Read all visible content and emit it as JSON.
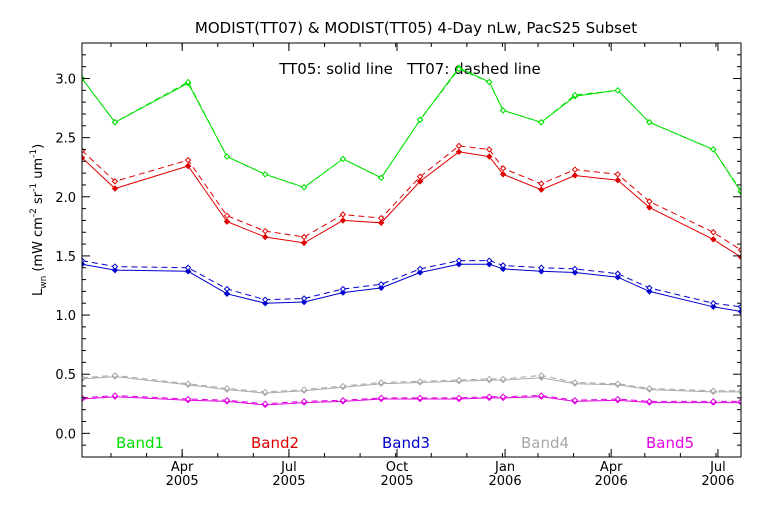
{
  "chart_data": {
    "type": "line",
    "title": "MODIST(TT07) & MODIST(TT05) 4-Day nLw, PacS25 Subset",
    "annotation": "TT05: solid line   TT07: dashed line",
    "ylabel_main": "L",
    "ylabel_sub": "wn",
    "ylabel_unit": "(mW cm",
    "ylabel_exp1": "-2",
    "ylabel_mid": " sr",
    "ylabel_exp2": "-1",
    "ylabel_tail": " um",
    "ylabel_exp3": "-1",
    "ylabel_close": ")",
    "ylim": [
      -0.2,
      3.3
    ],
    "xlim": [
      0,
      100
    ],
    "y_ticks": [
      "0.0",
      "0.5",
      "1.0",
      "1.5",
      "2.0",
      "2.5",
      "3.0"
    ],
    "x_ticks": [
      {
        "x": 15.2,
        "month": "Apr",
        "year": "2005"
      },
      {
        "x": 31.4,
        "month": "Jul",
        "year": "2005"
      },
      {
        "x": 47.8,
        "month": "Oct",
        "year": "2005"
      },
      {
        "x": 64.2,
        "month": "Jan",
        "year": "2006"
      },
      {
        "x": 80.3,
        "month": "Apr",
        "year": "2006"
      },
      {
        "x": 96.5,
        "month": "Jul",
        "year": "2006"
      }
    ],
    "x": [
      0,
      5.0,
      16.1,
      22.0,
      27.8,
      33.7,
      39.6,
      45.4,
      51.3,
      57.2,
      61.8,
      63.9,
      69.7,
      74.8,
      81.3,
      86.1,
      95.8,
      100
    ],
    "series": [
      {
        "name": "Band1",
        "color": "#00e000",
        "solid": [
          3.0,
          2.63,
          2.96,
          2.34,
          2.19,
          2.08,
          2.32,
          2.16,
          2.65,
          3.09,
          2.97,
          2.73,
          2.63,
          2.85,
          2.9,
          2.63,
          2.4,
          2.04
        ],
        "dashed": [
          3.0,
          2.63,
          2.97,
          2.34,
          2.19,
          2.08,
          2.32,
          2.16,
          2.65,
          3.08,
          2.97,
          2.73,
          2.63,
          2.86,
          2.9,
          2.63,
          2.4,
          2.05
        ]
      },
      {
        "name": "Band2",
        "color": "#e00000",
        "solid": [
          2.33,
          2.07,
          2.26,
          1.79,
          1.66,
          1.61,
          1.8,
          1.78,
          2.13,
          2.38,
          2.34,
          2.19,
          2.06,
          2.18,
          2.14,
          1.91,
          1.64,
          1.49
        ],
        "dashed": [
          2.39,
          2.13,
          2.31,
          1.84,
          1.71,
          1.66,
          1.85,
          1.82,
          2.17,
          2.43,
          2.4,
          2.24,
          2.11,
          2.23,
          2.19,
          1.96,
          1.7,
          1.55
        ]
      },
      {
        "name": "Band3",
        "color": "#0000d0",
        "solid": [
          1.43,
          1.38,
          1.37,
          1.18,
          1.1,
          1.11,
          1.19,
          1.23,
          1.36,
          1.43,
          1.43,
          1.39,
          1.37,
          1.36,
          1.32,
          1.2,
          1.07,
          1.03
        ],
        "dashed": [
          1.46,
          1.41,
          1.4,
          1.22,
          1.13,
          1.14,
          1.22,
          1.26,
          1.39,
          1.46,
          1.46,
          1.42,
          1.4,
          1.39,
          1.35,
          1.23,
          1.1,
          1.07
        ]
      },
      {
        "name": "Band4",
        "color": "#a8a8a8",
        "solid": [
          0.46,
          0.48,
          0.41,
          0.37,
          0.34,
          0.36,
          0.39,
          0.42,
          0.43,
          0.44,
          0.45,
          0.45,
          0.47,
          0.42,
          0.41,
          0.37,
          0.35,
          0.35
        ],
        "dashed": [
          0.47,
          0.49,
          0.42,
          0.38,
          0.35,
          0.37,
          0.4,
          0.43,
          0.44,
          0.45,
          0.46,
          0.46,
          0.49,
          0.43,
          0.42,
          0.38,
          0.36,
          0.36
        ]
      },
      {
        "name": "Band5",
        "color": "#e000e0",
        "solid": [
          0.29,
          0.31,
          0.28,
          0.27,
          0.24,
          0.26,
          0.27,
          0.29,
          0.29,
          0.29,
          0.3,
          0.3,
          0.31,
          0.27,
          0.28,
          0.26,
          0.26,
          0.26
        ],
        "dashed": [
          0.3,
          0.32,
          0.29,
          0.28,
          0.25,
          0.27,
          0.28,
          0.3,
          0.3,
          0.3,
          0.31,
          0.31,
          0.32,
          0.28,
          0.29,
          0.27,
          0.27,
          0.27
        ]
      }
    ],
    "grid": false,
    "legend": "bottom, inside plot, one label per band"
  }
}
